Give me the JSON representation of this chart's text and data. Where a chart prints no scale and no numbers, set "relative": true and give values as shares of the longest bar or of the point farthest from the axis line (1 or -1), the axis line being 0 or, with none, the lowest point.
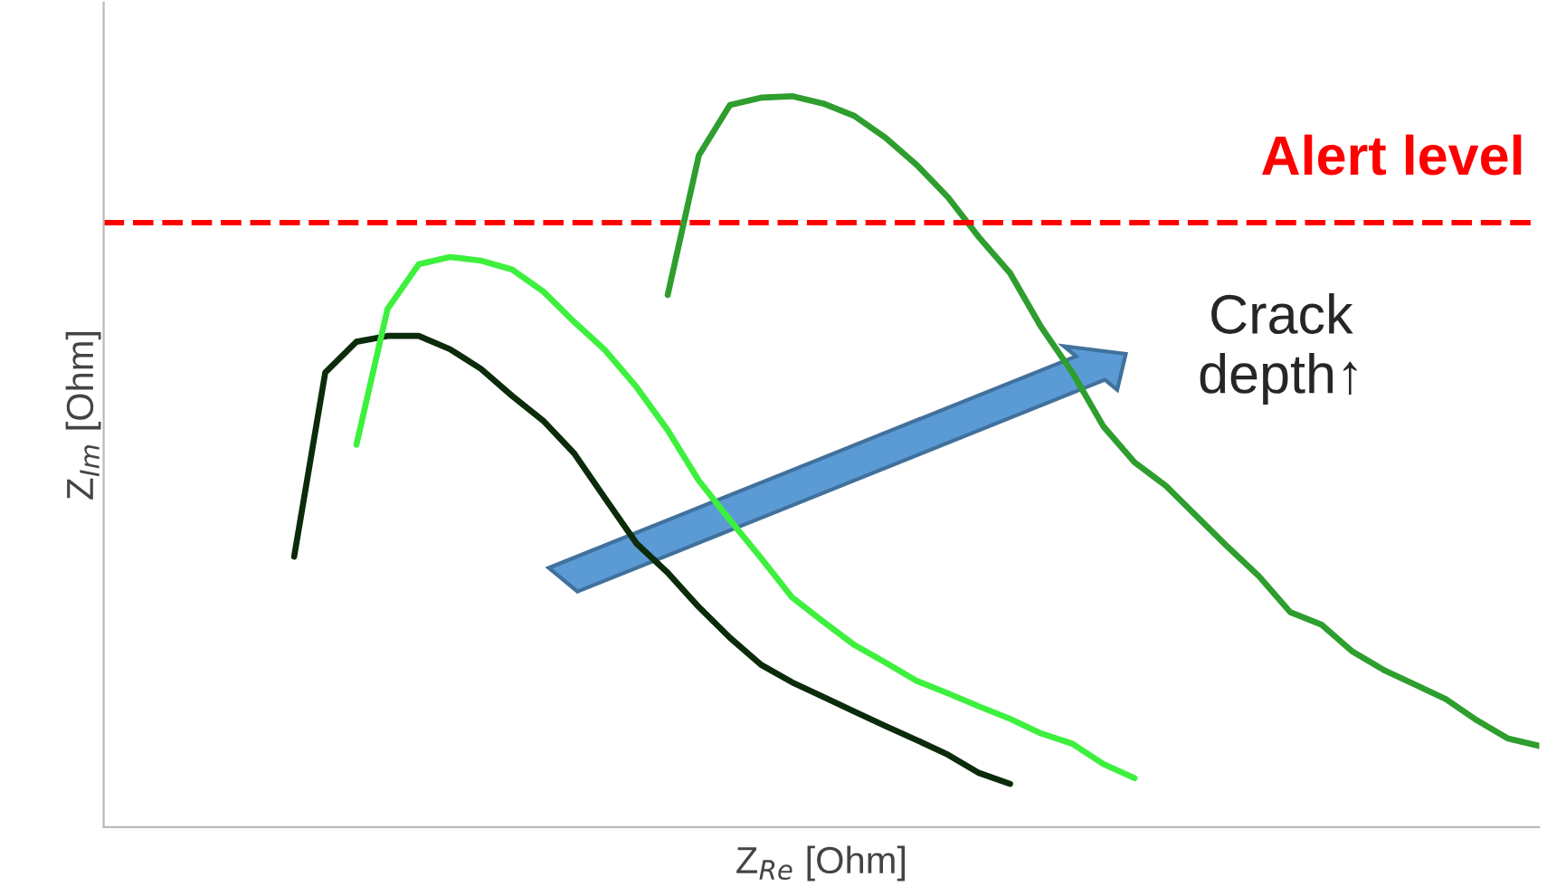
{
  "chart_data": {
    "type": "line",
    "relative": true,
    "xlabel": "Z$_{Re}$ [Ohm]",
    "ylabel": "Z$_{Im}$ [Ohm]",
    "legend": false,
    "marker": "none",
    "line_style": "solid",
    "categories": [
      null,
      null,
      null,
      null,
      null,
      null,
      null,
      null,
      null,
      null,
      null,
      null,
      null,
      null,
      null,
      null,
      null,
      null,
      null,
      null,
      null,
      null,
      null,
      null,
      null,
      null,
      null,
      null,
      null,
      null,
      null,
      null,
      null,
      null,
      null,
      null,
      null,
      null,
      null,
      null,
      null
    ],
    "series": [
      {
        "color": "#0b2b0b",
        "values": [
          0.37,
          0.622,
          0.664,
          0.672,
          0.672,
          0.654,
          0.627,
          0.59,
          0.556,
          0.511,
          0.449,
          0.388,
          0.348,
          0.301,
          0.259,
          0.222,
          0.198,
          0.178,
          0.158,
          0.138,
          0.119,
          0.099,
          0.074,
          0.059,
          null,
          null,
          null,
          null,
          null,
          null,
          null,
          null,
          null,
          null,
          null,
          null,
          null,
          null,
          null,
          null,
          null
        ]
      },
      {
        "color": "#3ef03e",
        "values": [
          null,
          null,
          0.523,
          0.709,
          0.77,
          0.78,
          0.775,
          0.763,
          0.733,
          0.691,
          0.652,
          0.602,
          0.543,
          0.474,
          0.42,
          0.368,
          0.314,
          0.281,
          0.249,
          0.225,
          0.2,
          0.183,
          0.165,
          0.148,
          0.128,
          0.114,
          0.086,
          0.067,
          null,
          null,
          null,
          null,
          null,
          null,
          null,
          null,
          null,
          null,
          null,
          null,
          null
        ]
      },
      {
        "color": "#2e9e2e",
        "values": [
          null,
          null,
          null,
          null,
          null,
          null,
          null,
          null,
          null,
          null,
          null,
          null,
          0.728,
          0.919,
          0.988,
          0.998,
          1.0,
          0.99,
          0.973,
          0.943,
          0.906,
          0.862,
          0.807,
          0.758,
          0.684,
          0.622,
          0.548,
          0.499,
          0.467,
          0.425,
          0.383,
          0.343,
          0.294,
          0.277,
          0.24,
          0.215,
          0.195,
          0.175,
          0.146,
          0.121,
          0.111
        ]
      }
    ],
    "ref_lines": [
      {
        "axis": "y",
        "value": 0.827,
        "label": "Alert level",
        "color": "#ff0000",
        "line_style": "dashed"
      }
    ],
    "annotations": [
      "Crack\ndepth↑"
    ]
  }
}
